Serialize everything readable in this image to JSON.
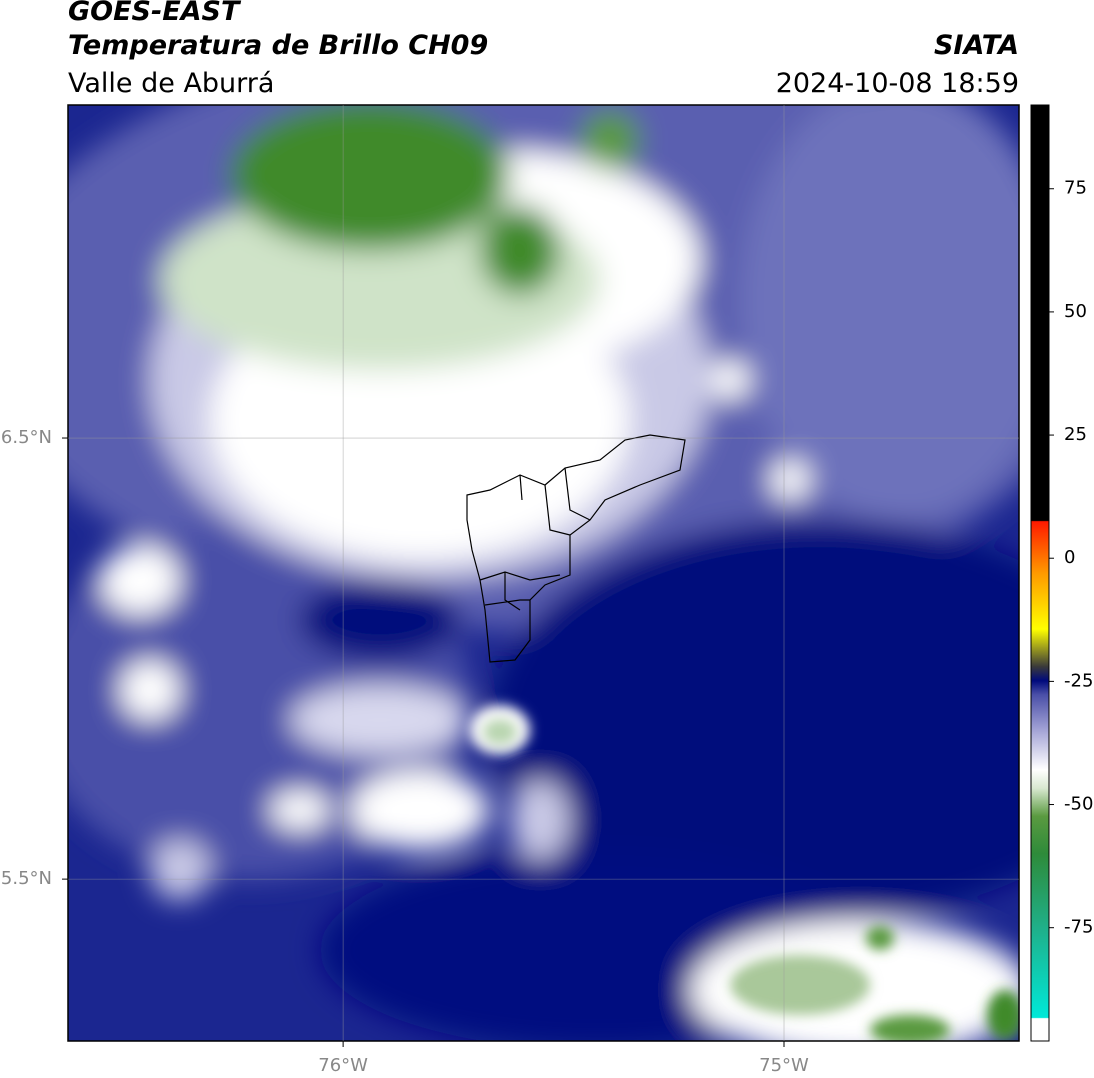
{
  "header": {
    "title": "GOES-EAST",
    "subtitle": "Temperatura de Brillo CH09",
    "region": "Valle de Aburrá",
    "source": "SIATA",
    "datetime": "2024-10-08 18:59"
  },
  "map": {
    "xlim": [
      -76.624,
      -74.467
    ],
    "ylim": [
      5.133,
      7.255
    ],
    "xticks": [
      {
        "value": -76,
        "label": "76°W"
      },
      {
        "value": -75,
        "label": "75°W"
      }
    ],
    "yticks": [
      {
        "value": 6.5,
        "label": "6.5°N"
      },
      {
        "value": 5.5,
        "label": "5.5°N"
      }
    ],
    "grid": true
  },
  "colorbar": {
    "lim": [
      -98,
      92
    ],
    "ticks": [
      75,
      50,
      25,
      0,
      -25,
      -50,
      -75
    ]
  }
}
